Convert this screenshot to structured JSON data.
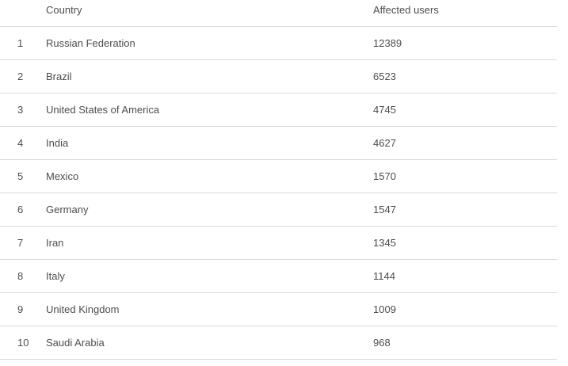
{
  "table": {
    "headers": {
      "rank": "",
      "country": "Country",
      "users": "Affected users"
    },
    "rows": [
      {
        "rank": "1",
        "country": "Russian Federation",
        "users": "12389"
      },
      {
        "rank": "2",
        "country": "Brazil",
        "users": "6523"
      },
      {
        "rank": "3",
        "country": "United States of America",
        "users": "4745"
      },
      {
        "rank": "4",
        "country": "India",
        "users": "4627"
      },
      {
        "rank": "5",
        "country": "Mexico",
        "users": "1570"
      },
      {
        "rank": "6",
        "country": "Germany",
        "users": "1547"
      },
      {
        "rank": "7",
        "country": "Iran",
        "users": "1345"
      },
      {
        "rank": "8",
        "country": "Italy",
        "users": "1144"
      },
      {
        "rank": "9",
        "country": "United Kingdom",
        "users": "1009"
      },
      {
        "rank": "10",
        "country": "Saudi Arabia",
        "users": "968"
      }
    ]
  }
}
